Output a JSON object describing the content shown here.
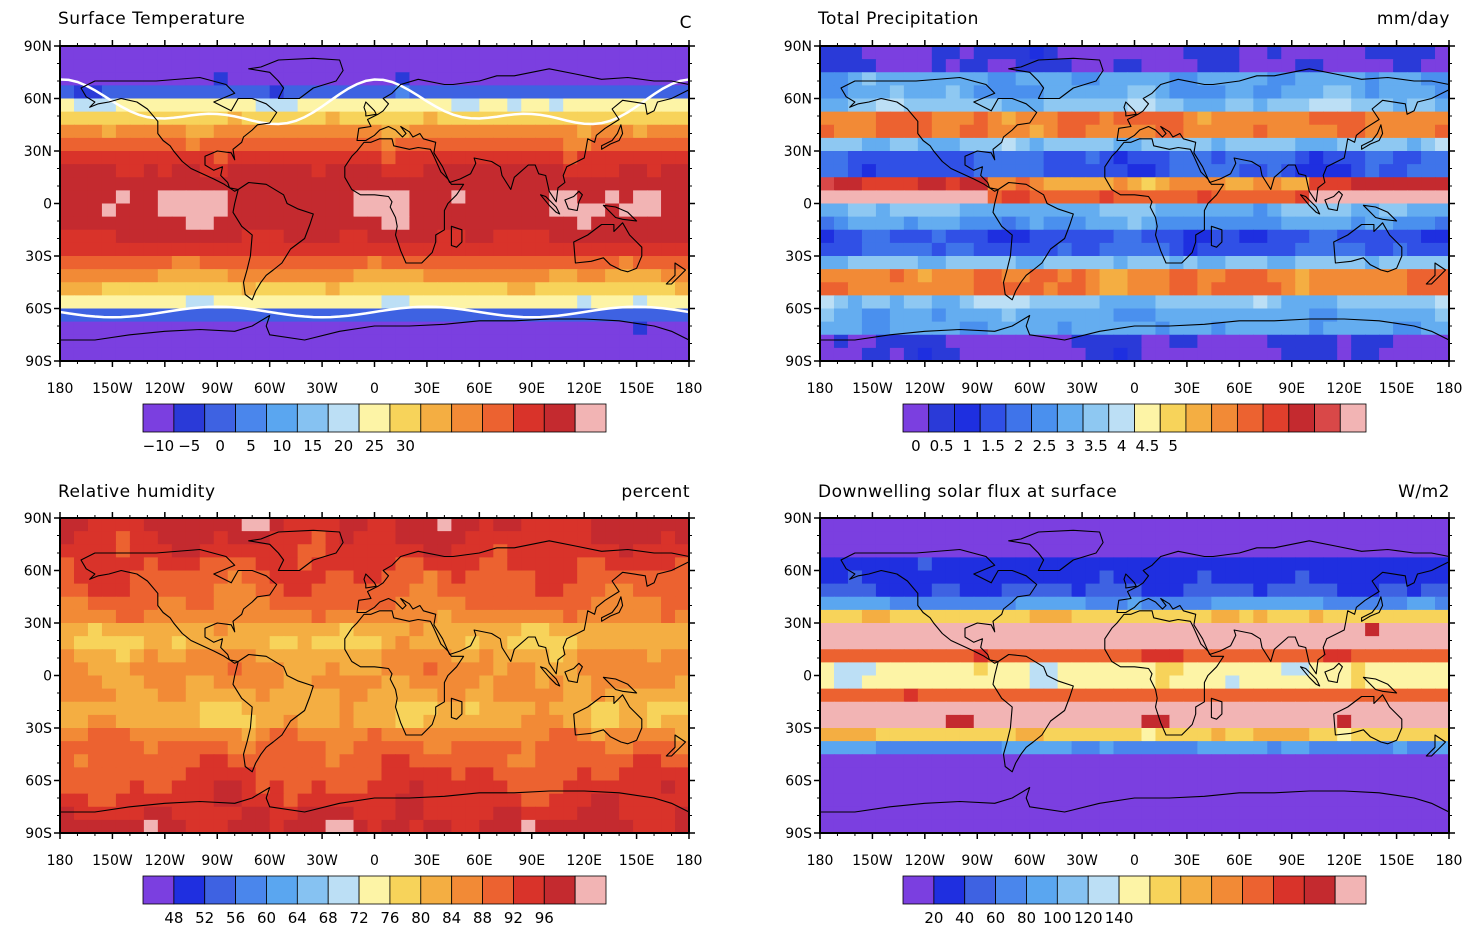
{
  "axes": {
    "lat_labels": [
      "90N",
      "60N",
      "30N",
      "0",
      "30S",
      "60S",
      "90S"
    ],
    "lon_labels": [
      "180",
      "150W",
      "120W",
      "90W",
      "60W",
      "30W",
      "0",
      "30E",
      "60E",
      "90E",
      "120E",
      "150E",
      "180"
    ]
  },
  "panels": [
    {
      "title": "Surface Temperature",
      "units": "C",
      "palette": [
        "#7b3fe0",
        "#2a3ad8",
        "#3e62e2",
        "#4a86ec",
        "#5aa6f0",
        "#86c2f2",
        "#bcdff5",
        "#fdf4a6",
        "#f7d35a",
        "#f4ae42",
        "#f28a36",
        "#ec6230",
        "#d9332a",
        "#c42a2f",
        "#f2b4b4"
      ],
      "colorbar_ticks": [
        {
          "label": "−10",
          "box": 1
        },
        {
          "label": "−5",
          "box": 3
        },
        {
          "label": "0",
          "box": 5
        },
        {
          "label": "5",
          "box": 7
        },
        {
          "label": "10",
          "box": 9
        },
        {
          "label": "15",
          "box": 11
        },
        {
          "label": "20",
          "box": 13
        },
        {
          "label": "25",
          "box": 15
        },
        {
          "label": "30",
          "box": 17
        }
      ],
      "field": "temp",
      "freezing_contour": true
    },
    {
      "title": "Total Precipitation",
      "units": "mm/day",
      "palette": [
        "#7b3fe0",
        "#2a3ad8",
        "#1e2fe0",
        "#3050e6",
        "#3f74ea",
        "#4a90ee",
        "#64adf0",
        "#8ec8f2",
        "#bcdff5",
        "#fdf4a6",
        "#f7d35a",
        "#f4ae42",
        "#f28a36",
        "#ec6230",
        "#e03f2c",
        "#c42a2f",
        "#d94848",
        "#f2b4b4"
      ],
      "colorbar_ticks": [
        {
          "label": "0",
          "box": 1
        },
        {
          "label": "0.5",
          "box": 3
        },
        {
          "label": "1",
          "box": 5
        },
        {
          "label": "1.5",
          "box": 7
        },
        {
          "label": "2",
          "box": 9
        },
        {
          "label": "2.5",
          "box": 11
        },
        {
          "label": "3",
          "box": 13
        },
        {
          "label": "3.5",
          "box": 15
        },
        {
          "label": "4",
          "box": 17
        },
        {
          "label": "4.5",
          "box": 19
        },
        {
          "label": "5",
          "box": 21
        }
      ],
      "field": "precip",
      "freezing_contour": false
    },
    {
      "title": "Relative humidity",
      "units": "percent",
      "palette": [
        "#7b3fe0",
        "#1f2fe0",
        "#3e62e2",
        "#4a86ec",
        "#5aa6f0",
        "#86c2f2",
        "#bcdff5",
        "#fdf4a6",
        "#f7d35a",
        "#f4ae42",
        "#f28a36",
        "#ec6230",
        "#d9332a",
        "#c42a2f",
        "#f2b4b4"
      ],
      "colorbar_ticks": [
        {
          "label": "48",
          "box": 2
        },
        {
          "label": "52",
          "box": 4
        },
        {
          "label": "56",
          "box": 6
        },
        {
          "label": "60",
          "box": 8
        },
        {
          "label": "64",
          "box": 10
        },
        {
          "label": "68",
          "box": 12
        },
        {
          "label": "72",
          "box": 14
        },
        {
          "label": "76",
          "box": 16
        },
        {
          "label": "80",
          "box": 18
        },
        {
          "label": "84",
          "box": 20
        },
        {
          "label": "88",
          "box": 22
        },
        {
          "label": "92",
          "box": 24
        },
        {
          "label": "96",
          "box": 26
        }
      ],
      "field": "rh",
      "freezing_contour": false
    },
    {
      "title": "Downwelling solar flux at surface",
      "units": "W/m2",
      "palette": [
        "#7b3fe0",
        "#1f2fe0",
        "#3e62e2",
        "#4a86ec",
        "#5aa6f0",
        "#86c2f2",
        "#bcdff5",
        "#fdf4a6",
        "#f7d35a",
        "#f4ae42",
        "#f28a36",
        "#ec6230",
        "#d9332a",
        "#c42a2f",
        "#f2b4b4"
      ],
      "colorbar_ticks": [
        {
          "label": "20",
          "box": 2
        },
        {
          "label": "40",
          "box": 4
        },
        {
          "label": "60",
          "box": 6
        },
        {
          "label": "80",
          "box": 8
        },
        {
          "label": "100",
          "box": 10
        },
        {
          "label": "120",
          "box": 12
        },
        {
          "label": "140",
          "box": 14
        }
      ],
      "field": "solar",
      "freezing_contour": false
    }
  ]
}
